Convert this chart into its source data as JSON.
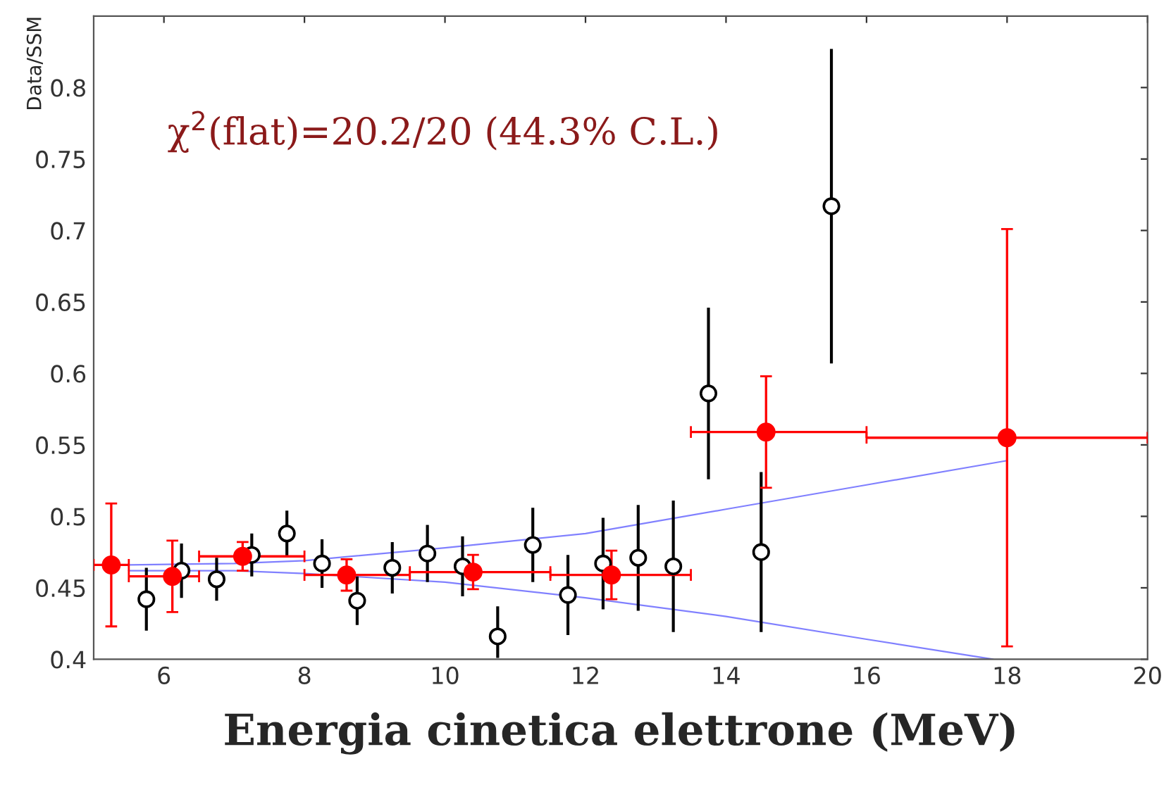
{
  "chart_data": {
    "type": "scatter",
    "xlabel": "Energia cinetica elettrone (MeV)",
    "ylabel": "Data/SSM",
    "annotations": [
      "χ$^{2}$(flat)=20.2/20 (44.3% C.L.)"
    ],
    "xlim": [
      5,
      20
    ],
    "xticks": [
      6,
      8,
      10,
      12,
      14,
      16,
      18,
      20
    ],
    "ylim": [
      0.4,
      0.85
    ],
    "yticks": [
      0.4,
      0.45,
      0.5,
      0.55,
      0.6,
      0.65,
      0.7,
      0.75,
      0.8
    ],
    "grid": false,
    "legend": false,
    "series": [
      {
        "type": "line",
        "marker": "none",
        "color": "#8080ff",
        "x": [
          5.5,
          7,
          8,
          10,
          12,
          14,
          16,
          18
        ],
        "values": [
          0.466,
          0.467,
          0.469,
          0.478,
          0.488,
          0.505,
          0.522,
          0.539
        ]
      },
      {
        "type": "line",
        "marker": "none",
        "color": "#8080ff",
        "x": [
          5.5,
          7,
          8,
          10,
          12,
          14,
          16,
          17.8
        ],
        "values": [
          0.462,
          0.462,
          0.46,
          0.454,
          0.443,
          0.43,
          0.414,
          0.4
        ]
      },
      {
        "marker": "circle",
        "color": "#000000",
        "x": [
          5.75,
          6.25,
          6.75,
          7.25,
          7.75,
          8.25,
          8.75,
          9.25,
          9.75,
          10.25,
          10.75,
          11.25,
          11.75,
          12.25,
          12.75,
          13.25,
          13.75,
          14.5,
          15.5
        ],
        "values": [
          0.442,
          0.462,
          0.456,
          0.473,
          0.488,
          0.467,
          0.441,
          0.464,
          0.474,
          0.465,
          0.416,
          0.48,
          0.445,
          0.467,
          0.471,
          0.465,
          0.586,
          0.475,
          0.717
        ],
        "errors": [
          0.022,
          0.019,
          0.015,
          0.015,
          0.016,
          0.017,
          0.017,
          0.018,
          0.02,
          0.021,
          [
            0.401,
            0.437
          ],
          0.026,
          0.028,
          0.032,
          0.037,
          0.046,
          0.06,
          0.056,
          0.11
        ]
      },
      {
        "marker": "circle",
        "color": "#ff0000",
        "x": [
          5.25,
          6.12,
          7.12,
          8.6,
          10.4,
          12.37,
          14.57,
          18
        ],
        "values": [
          0.466,
          0.458,
          0.472,
          0.459,
          0.461,
          0.459,
          0.559,
          0.555
        ],
        "errors": [
          0.043,
          0.025,
          0.01,
          0.011,
          0.012,
          0.017,
          0.039,
          0.146
        ],
        "xerrors": [
          0.25,
          [
            5.5,
            6.5
          ],
          [
            6.5,
            8
          ],
          [
            8,
            9.5
          ],
          [
            9.5,
            11.5
          ],
          [
            11.5,
            13.5
          ],
          [
            13.5,
            16
          ],
          2
        ]
      }
    ]
  }
}
